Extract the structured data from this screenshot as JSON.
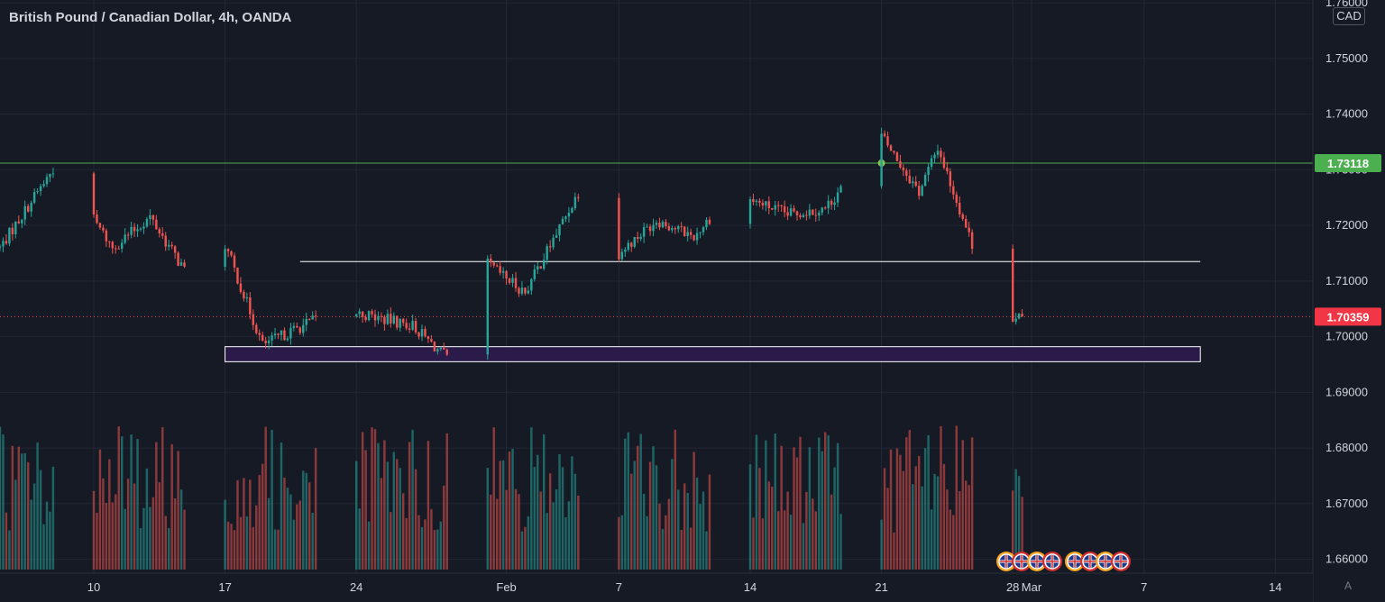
{
  "header": {
    "title": "British Pound / Canadian Dollar, 4h, OANDA",
    "currency": "CAD"
  },
  "controls": {
    "auto_scale": "A"
  },
  "colors": {
    "background": "#161a25",
    "grid": "#232734",
    "up": "#26a69a",
    "down": "#ef5350",
    "resistance_line": "#4caf50",
    "price_badge": "#f23645",
    "zone_fill": "#2a1b4a",
    "axis_text": "#d1d4dc",
    "muted_text": "#787b86"
  },
  "chart_data": {
    "type": "candlestick",
    "timeframe": "4h",
    "symbol": "GBPCAD",
    "y_axis": {
      "ticks": [
        "1.76000",
        "1.75000",
        "1.74000",
        "1.73000",
        "1.72000",
        "1.71000",
        "1.70000",
        "1.69000",
        "1.68000",
        "1.67000",
        "1.66000"
      ],
      "range": [
        1.6575,
        1.7605
      ],
      "scale": "linear"
    },
    "x_axis": {
      "ticks": [
        "10",
        "17",
        "24",
        "Feb",
        "7",
        "14",
        "21",
        "28",
        "Mar",
        "7",
        "14"
      ],
      "range": [
        "2022-01-05",
        "2022-03-16"
      ]
    },
    "current_price": {
      "label": "1.70359",
      "value": 1.70359
    },
    "resistance": {
      "label": "1.73118",
      "value": 1.73118
    },
    "horizontal_line": {
      "value": 1.7135,
      "from": "2022-01-21",
      "to": "2022-03-10"
    },
    "support_zone": {
      "top": 1.6982,
      "bottom": 1.6955,
      "from": "2022-01-17",
      "to": "2022-03-10"
    },
    "marker_dot": {
      "date": "2022-02-21",
      "value": 1.7312,
      "color": "#8bc34a"
    },
    "event_flags": {
      "country": "GB",
      "count": 8
    },
    "path_keyframes": [
      {
        "t": "2022-01-05",
        "p": 1.716
      },
      {
        "t": "2022-01-08",
        "p": 1.731
      },
      {
        "t": "2022-01-11",
        "p": 1.716
      },
      {
        "t": "2022-01-13",
        "p": 1.7215
      },
      {
        "t": "2022-01-15",
        "p": 1.711
      },
      {
        "t": "2022-01-17",
        "p": 1.7165
      },
      {
        "t": "2022-01-19",
        "p": 1.6985
      },
      {
        "t": "2022-01-23",
        "p": 1.705
      },
      {
        "t": "2022-01-27",
        "p": 1.702
      },
      {
        "t": "2022-01-29",
        "p": 1.6955
      },
      {
        "t": "2022-01-31",
        "p": 1.713
      },
      {
        "t": "2022-02-02",
        "p": 1.708
      },
      {
        "t": "2022-02-05",
        "p": 1.727
      },
      {
        "t": "2022-02-07",
        "p": 1.715
      },
      {
        "t": "2022-02-09",
        "p": 1.721
      },
      {
        "t": "2022-02-11",
        "p": 1.718
      },
      {
        "t": "2022-02-13",
        "p": 1.726
      },
      {
        "t": "2022-02-16",
        "p": 1.722
      },
      {
        "t": "2022-02-18",
        "p": 1.723
      },
      {
        "t": "2022-02-21",
        "p": 1.736
      },
      {
        "t": "2022-02-23",
        "p": 1.726
      },
      {
        "t": "2022-02-24",
        "p": 1.734
      },
      {
        "t": "2022-02-26",
        "p": 1.715
      },
      {
        "t": "2022-02-28",
        "p": 1.7036
      }
    ]
  }
}
